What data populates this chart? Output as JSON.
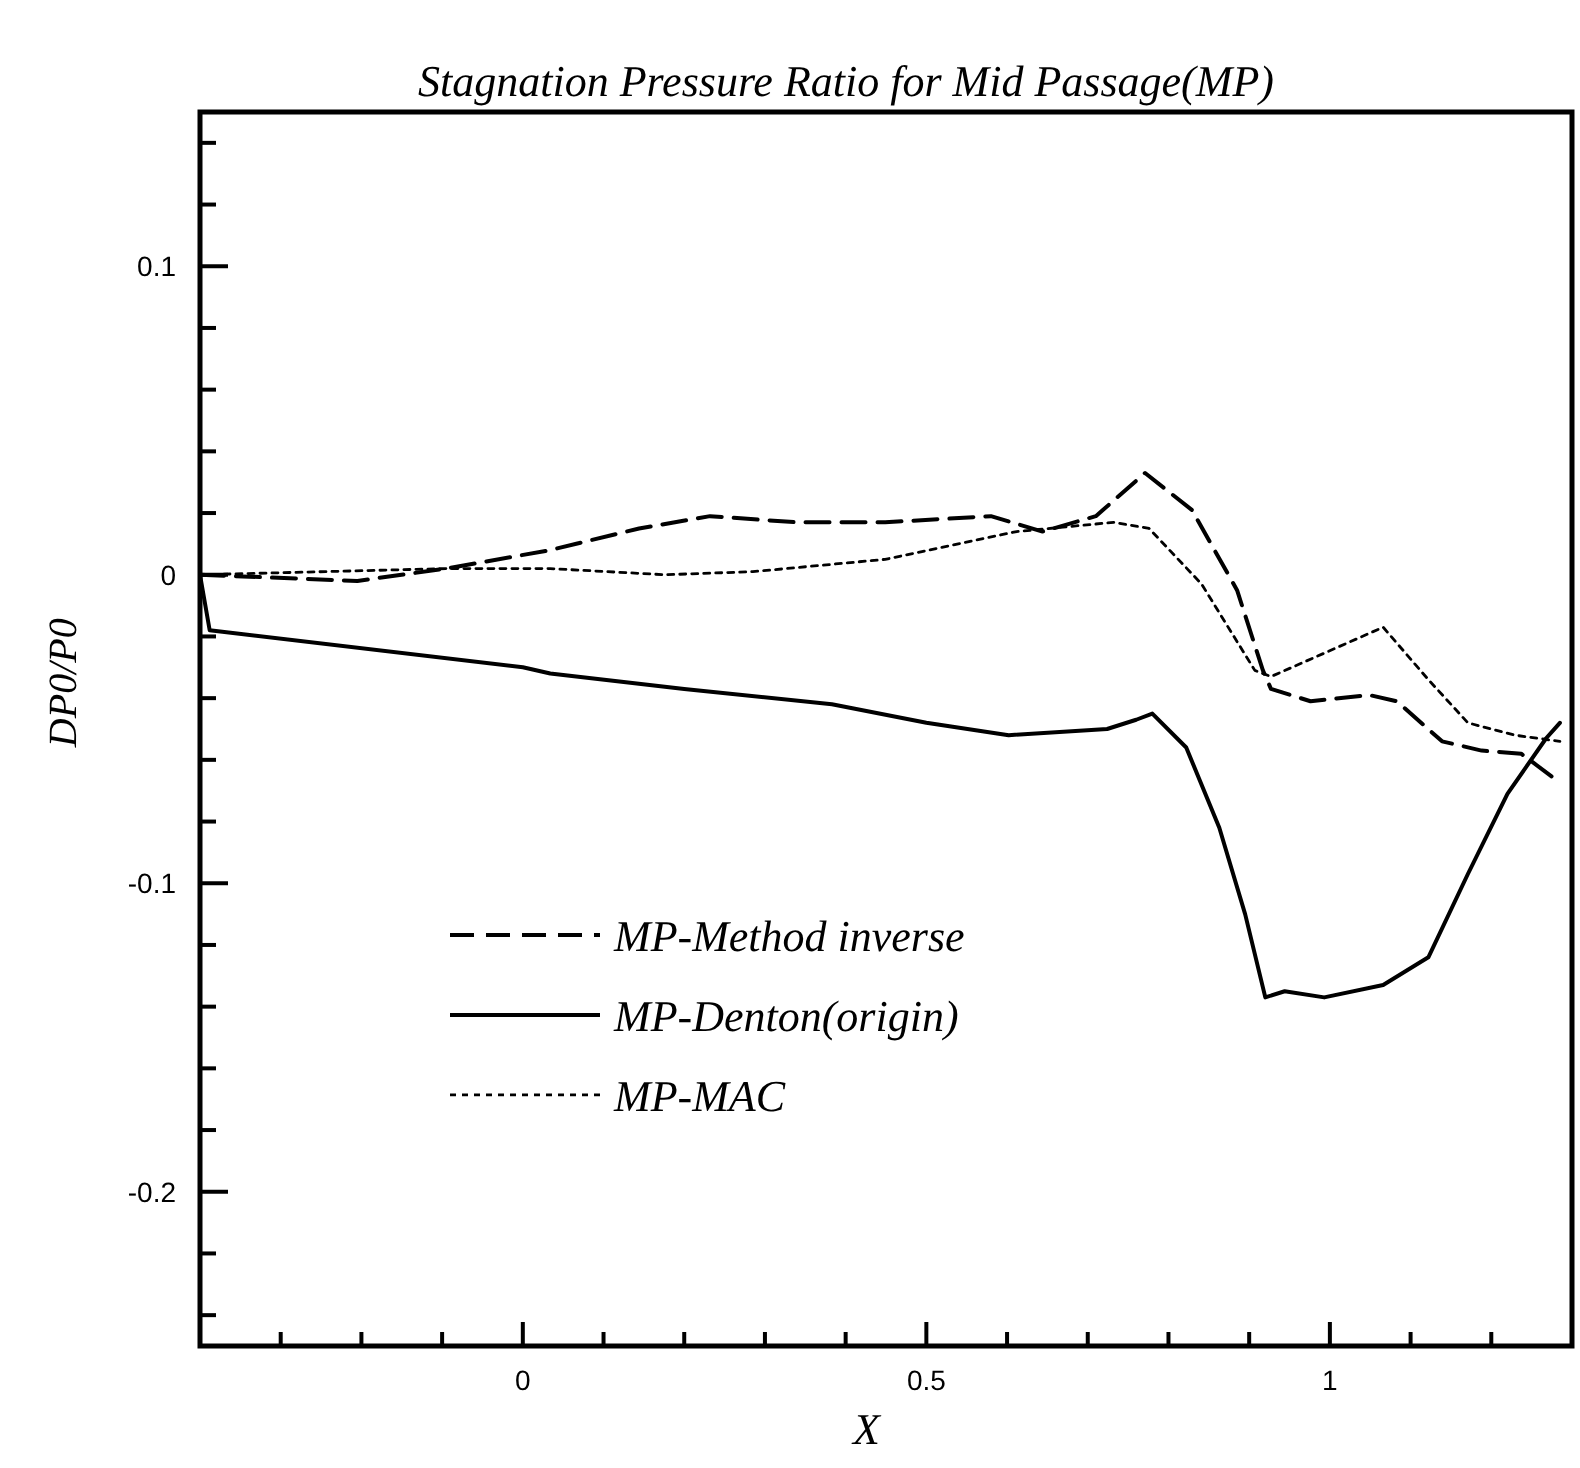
{
  "chart_data": {
    "type": "line",
    "title": "Stagnation Pressure Ratio for Mid Passage(MP)",
    "xlabel": "X",
    "ylabel": "DP0/P0",
    "xlim": [
      -0.4,
      1.3
    ],
    "ylim": [
      -0.25,
      0.15
    ],
    "xticks": [
      {
        "value": -0.3,
        "label": null
      },
      {
        "value": -0.2,
        "label": null
      },
      {
        "value": -0.1,
        "label": null
      },
      0,
      {
        "value": 0.1,
        "label": null
      },
      {
        "value": 0.2,
        "label": null
      },
      {
        "value": 0.3,
        "label": null
      },
      {
        "value": 0.4,
        "label": null
      },
      0.5,
      {
        "value": 0.6,
        "label": null
      },
      {
        "value": 0.7,
        "label": null
      },
      {
        "value": 0.8,
        "label": null
      },
      {
        "value": 0.9,
        "label": null
      },
      1,
      {
        "value": 1.1,
        "label": null
      },
      {
        "value": 1.2,
        "label": null
      }
    ],
    "yticks": [
      {
        "value": -0.24,
        "label": null
      },
      {
        "value": -0.22,
        "label": null
      },
      -0.2,
      {
        "value": -0.18,
        "label": null
      },
      {
        "value": -0.16,
        "label": null
      },
      {
        "value": -0.14,
        "label": null
      },
      {
        "value": -0.12,
        "label": null
      },
      -0.1,
      {
        "value": -0.08,
        "label": null
      },
      {
        "value": -0.06,
        "label": null
      },
      {
        "value": -0.04,
        "label": null
      },
      {
        "value": -0.02,
        "label": null
      },
      0,
      {
        "value": 0.02,
        "label": null
      },
      {
        "value": 0.04,
        "label": null
      },
      {
        "value": 0.06,
        "label": null
      },
      {
        "value": 0.08,
        "label": null
      },
      0.1,
      {
        "value": 0.12,
        "label": null
      },
      {
        "value": 0.14,
        "label": null
      }
    ],
    "grid": false,
    "legend": "bottom left",
    "marker": "none",
    "series": [
      {
        "name": "MP-Method inverse",
        "color": "#000000",
        "line_style": "dashed",
        "x": [
          -0.4,
          -0.205,
          -0.095,
          0.034,
          0.144,
          0.232,
          0.339,
          0.449,
          0.58,
          0.644,
          0.71,
          0.771,
          0.829,
          0.885,
          0.917,
          0.927,
          0.976,
          1.049,
          1.083,
          1.139,
          1.188,
          1.237,
          1.278
        ],
        "values": [
          0,
          -0.002,
          0.002,
          0.008,
          0.015,
          0.019,
          0.017,
          0.017,
          0.019,
          0.014,
          0.019,
          0.033,
          0.021,
          -0.005,
          -0.031,
          -0.037,
          -0.041,
          -0.039,
          -0.041,
          -0.054,
          -0.057,
          -0.058,
          -0.066
        ]
      },
      {
        "name": "MP-Denton(origin)",
        "color": "#000000",
        "line_style": "solid",
        "x": [
          -0.4,
          -0.388,
          0,
          0.034,
          0.2,
          0.383,
          0.5,
          0.602,
          0.724,
          0.76,
          0.78,
          0.822,
          0.863,
          0.895,
          0.92,
          0.944,
          0.993,
          1.066,
          1.122,
          1.171,
          1.22,
          1.268,
          1.285
        ],
        "values": [
          0,
          -0.018,
          -0.03,
          -0.032,
          -0.037,
          -0.042,
          -0.048,
          -0.052,
          -0.05,
          -0.047,
          -0.045,
          -0.056,
          -0.082,
          -0.11,
          -0.137,
          -0.135,
          -0.137,
          -0.133,
          -0.124,
          -0.097,
          -0.071,
          -0.053,
          -0.048
        ]
      },
      {
        "name": "MP-MAC",
        "color": "#000000",
        "line_style": "dotted",
        "x": [
          -0.4,
          -0.095,
          0.034,
          0.176,
          0.285,
          0.449,
          0.612,
          0.732,
          0.776,
          0.841,
          0.907,
          0.927,
          1.066,
          1.122,
          1.171,
          1.229,
          1.285
        ],
        "values": [
          0,
          0.002,
          0.002,
          0,
          0.001,
          0.005,
          0.014,
          0.017,
          0.015,
          -0.003,
          -0.031,
          -0.033,
          -0.017,
          -0.034,
          -0.048,
          -0.052,
          -0.054
        ]
      }
    ]
  }
}
